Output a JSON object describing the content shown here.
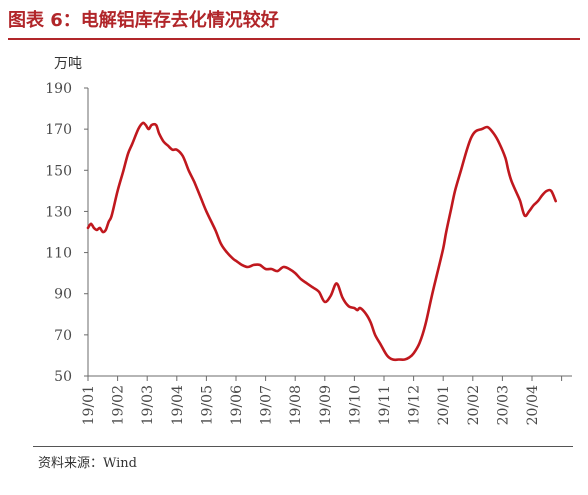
{
  "header": {
    "title": "图表 6：电解铝库存去化情况较好",
    "accent_color": "#b1262a"
  },
  "source": "资料来源：Wind",
  "chart_data": {
    "type": "line",
    "title": "图表 6：电解铝库存去化情况较好",
    "ylabel": "万吨",
    "xlabel": "",
    "ylim": [
      50,
      190
    ],
    "yticks": [
      50,
      70,
      90,
      110,
      130,
      150,
      170,
      190
    ],
    "x_tick_labels": [
      "19/01",
      "19/02",
      "19/03",
      "19/04",
      "19/05",
      "19/06",
      "19/07",
      "19/08",
      "19/09",
      "19/10",
      "19/11",
      "19/12",
      "20/01",
      "20/02",
      "20/03",
      "20/04"
    ],
    "grid": false,
    "legend": "none",
    "line_color": "#c0181e",
    "series": [
      {
        "x_months": [
          0.0,
          0.1,
          0.2,
          0.3,
          0.4,
          0.5,
          0.6,
          0.7,
          0.8,
          1.0,
          1.2,
          1.35,
          1.5,
          1.7,
          1.85,
          1.95,
          2.05,
          2.15,
          2.3,
          2.4,
          2.55,
          2.7,
          2.85,
          3.0,
          3.2,
          3.4,
          3.6,
          3.8,
          4.0,
          4.3,
          4.5,
          4.7,
          4.9,
          5.0,
          5.2,
          5.4,
          5.6,
          5.8,
          6.0,
          6.2,
          6.4,
          6.6,
          6.8,
          7.0,
          7.2,
          7.4,
          7.6,
          7.8,
          8.0,
          8.2,
          8.4,
          8.6,
          8.8,
          9.0,
          9.1,
          9.2,
          9.4,
          9.55,
          9.7,
          9.9,
          10.1,
          10.3,
          10.5,
          10.7,
          10.85,
          11.0,
          11.2,
          11.4,
          11.6,
          11.8,
          12.0,
          12.1,
          12.25,
          12.4,
          12.6,
          12.8,
          12.95,
          13.1,
          13.3,
          13.5,
          13.7,
          13.9,
          14.1,
          14.2,
          14.3,
          14.45,
          14.6,
          14.75,
          14.9,
          15.05,
          15.2,
          15.35,
          15.5,
          15.65,
          15.8
        ],
        "values": [
          122,
          124,
          122,
          121,
          122,
          120,
          121,
          125,
          128,
          140,
          150,
          158,
          163,
          170,
          173,
          172,
          170,
          172,
          172,
          168,
          164,
          162,
          160,
          160,
          157,
          150,
          144,
          137,
          130,
          121,
          114,
          110,
          107,
          106,
          104,
          103,
          104,
          104,
          102,
          102,
          101,
          103,
          102,
          100,
          97,
          95,
          93,
          91,
          86,
          89,
          95,
          88,
          84,
          83,
          82,
          83,
          80,
          76,
          70,
          65,
          60,
          58,
          58,
          58,
          59,
          61,
          66,
          75,
          88,
          100,
          112,
          120,
          130,
          140,
          150,
          160,
          166,
          169,
          170,
          171,
          168,
          163,
          156,
          150,
          145,
          140,
          135,
          128,
          130,
          133,
          135,
          138,
          140,
          140,
          135
        ]
      }
    ]
  }
}
